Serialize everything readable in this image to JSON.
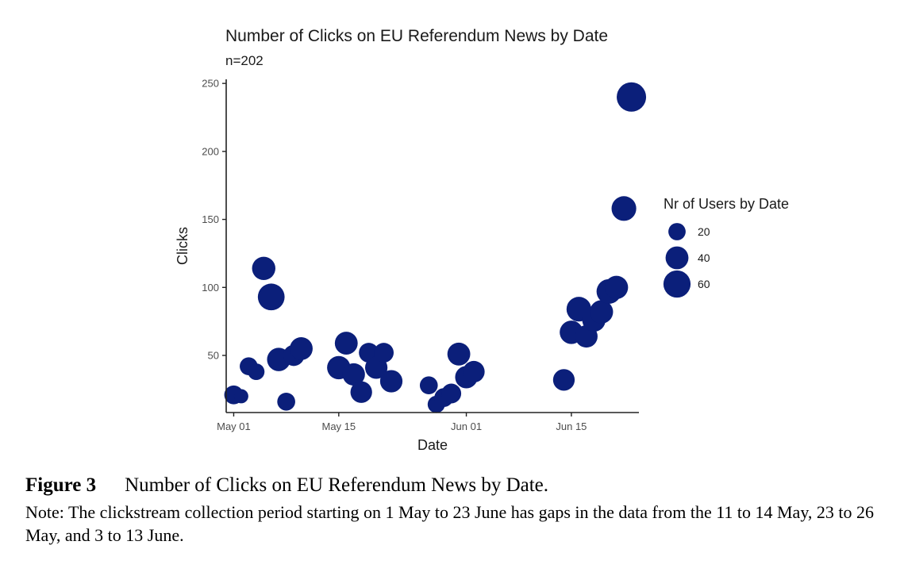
{
  "chart_data": {
    "type": "scatter",
    "title": "Number of Clicks on EU Referendum News by Date",
    "subtitle": "n=202",
    "xlabel": "Date",
    "ylabel": "Clicks",
    "x_ticks": [
      {
        "date": "2016-05-01",
        "label": "May 01"
      },
      {
        "date": "2016-05-15",
        "label": "May 15"
      },
      {
        "date": "2016-06-01",
        "label": "Jun 01"
      },
      {
        "date": "2016-06-15",
        "label": "Jun 15"
      }
    ],
    "y_ticks": [
      50,
      100,
      150,
      200,
      250
    ],
    "xlim": [
      "2016-04-30",
      "2016-06-24"
    ],
    "ylim": [
      8,
      253
    ],
    "grid": false,
    "point_color": "#0b1f7a",
    "size_legend": {
      "title": "Nr of Users by Date",
      "placement": "right",
      "entries": [
        {
          "label": "20",
          "value": 20
        },
        {
          "label": "40",
          "value": 40
        },
        {
          "label": "60",
          "value": 60
        }
      ]
    },
    "points": [
      {
        "date": "2016-05-01",
        "clicks": 21,
        "users": 25
      },
      {
        "date": "2016-05-02",
        "clicks": 20,
        "users": 12
      },
      {
        "date": "2016-05-03",
        "clicks": 42,
        "users": 22
      },
      {
        "date": "2016-05-04",
        "clicks": 38,
        "users": 18
      },
      {
        "date": "2016-05-05",
        "clicks": 114,
        "users": 42
      },
      {
        "date": "2016-05-06",
        "clicks": 93,
        "users": 58
      },
      {
        "date": "2016-05-07",
        "clicks": 47,
        "users": 42
      },
      {
        "date": "2016-05-08",
        "clicks": 16,
        "users": 22
      },
      {
        "date": "2016-05-09",
        "clicks": 50,
        "users": 33
      },
      {
        "date": "2016-05-10",
        "clicks": 55,
        "users": 40
      },
      {
        "date": "2016-05-15",
        "clicks": 41,
        "users": 42
      },
      {
        "date": "2016-05-16",
        "clicks": 59,
        "users": 40
      },
      {
        "date": "2016-05-17",
        "clicks": 36,
        "users": 38
      },
      {
        "date": "2016-05-18",
        "clicks": 23,
        "users": 35
      },
      {
        "date": "2016-05-19",
        "clicks": 52,
        "users": 28
      },
      {
        "date": "2016-05-20",
        "clicks": 41,
        "users": 38
      },
      {
        "date": "2016-05-21",
        "clicks": 52,
        "users": 28
      },
      {
        "date": "2016-05-22",
        "clicks": 31,
        "users": 38
      },
      {
        "date": "2016-05-27",
        "clicks": 28,
        "users": 22
      },
      {
        "date": "2016-05-28",
        "clicks": 14,
        "users": 20
      },
      {
        "date": "2016-05-29",
        "clicks": 19,
        "users": 25
      },
      {
        "date": "2016-05-30",
        "clicks": 22,
        "users": 28
      },
      {
        "date": "2016-05-31",
        "clicks": 51,
        "users": 40
      },
      {
        "date": "2016-06-01",
        "clicks": 34,
        "users": 38
      },
      {
        "date": "2016-06-02",
        "clicks": 38,
        "users": 35
      },
      {
        "date": "2016-06-14",
        "clicks": 32,
        "users": 35
      },
      {
        "date": "2016-06-15",
        "clicks": 67,
        "users": 42
      },
      {
        "date": "2016-06-16",
        "clicks": 84,
        "users": 48
      },
      {
        "date": "2016-06-17",
        "clicks": 64,
        "users": 38
      },
      {
        "date": "2016-06-18",
        "clicks": 76,
        "users": 42
      },
      {
        "date": "2016-06-19",
        "clicks": 82,
        "users": 42
      },
      {
        "date": "2016-06-20",
        "clicks": 97,
        "users": 48
      },
      {
        "date": "2016-06-21",
        "clicks": 100,
        "users": 42
      },
      {
        "date": "2016-06-22",
        "clicks": 158,
        "users": 48
      },
      {
        "date": "2016-06-23",
        "clicks": 240,
        "users": 72
      }
    ]
  },
  "caption": {
    "label": "Figure 3",
    "title": "Number of Clicks on EU Referendum News by Date.",
    "note": "Note: The clickstream collection period starting on 1 May to 23 June has gaps in the data from the 11 to 14 May, 23 to 26 May, and 3 to 13 June."
  }
}
